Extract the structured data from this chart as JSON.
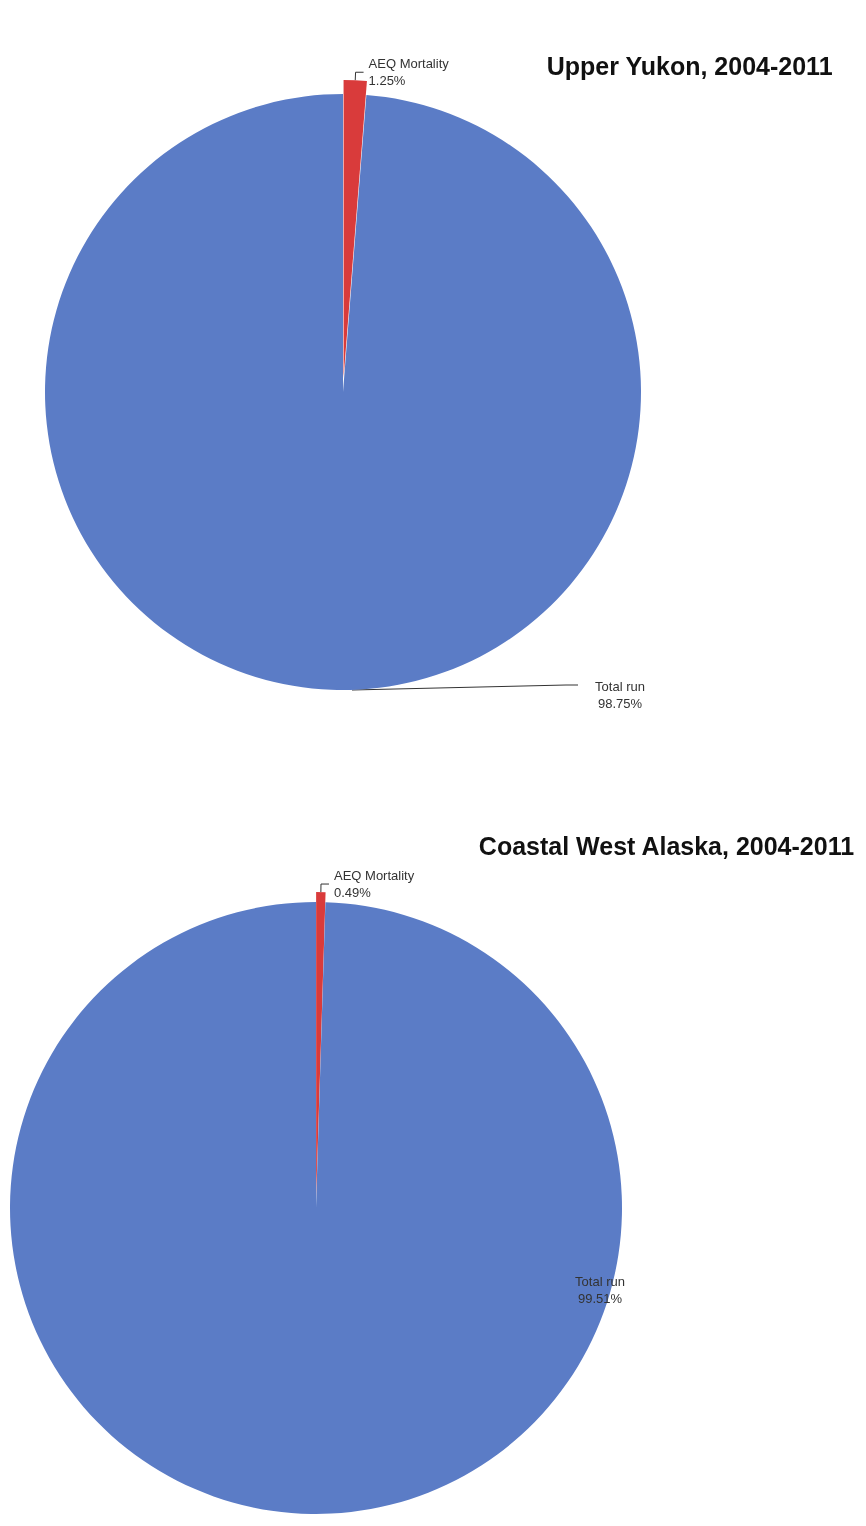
{
  "chart_data": [
    {
      "type": "pie",
      "title": "Upper Yukon, 2004-2011",
      "categories": [
        "AEQ Mortality",
        "Total run"
      ],
      "values": [
        1.25,
        98.75
      ],
      "value_labels": [
        "1.25%",
        "98.75%"
      ],
      "colors": [
        "#d93b3b",
        "#5b7cc6"
      ],
      "legend": false
    },
    {
      "type": "pie",
      "title": "Coastal West Alaska, 2004-2011",
      "categories": [
        "AEQ Mortality",
        "Total run"
      ],
      "values": [
        0.49,
        99.51
      ],
      "value_labels": [
        "0.49%",
        "99.51%"
      ],
      "colors": [
        "#d93b3b",
        "#5b7cc6"
      ],
      "legend": false
    }
  ]
}
